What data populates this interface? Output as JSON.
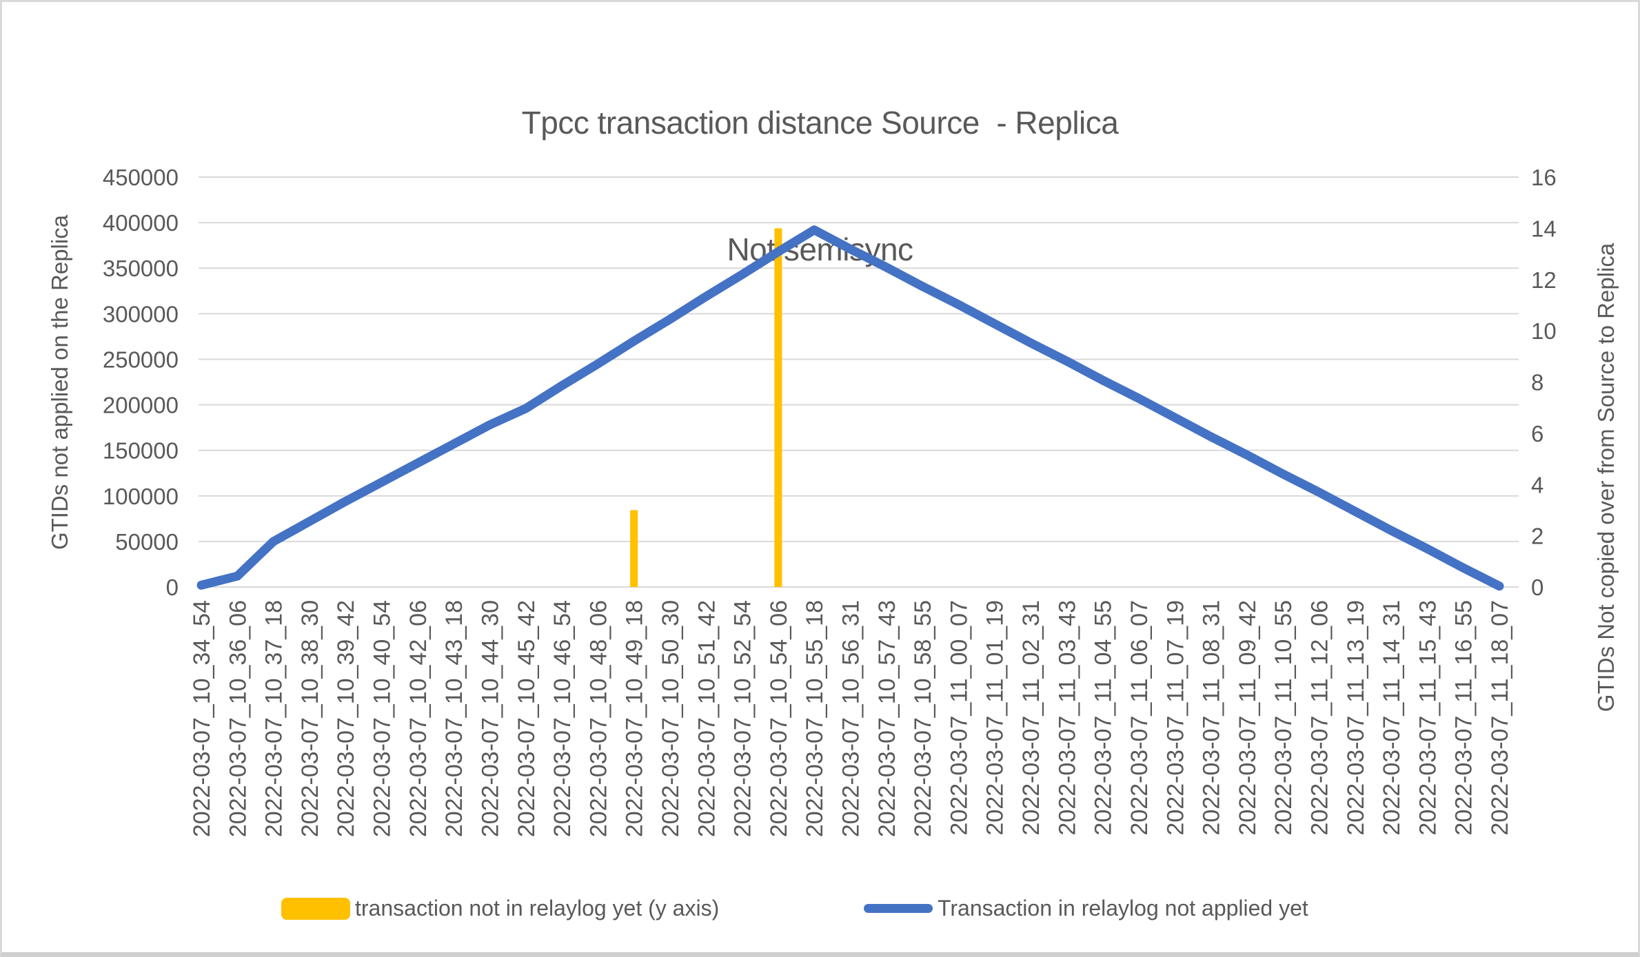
{
  "title": {
    "line1": "Tpcc transaction distance Source  - Replica",
    "line2": "Not semisync"
  },
  "legend": {
    "items": [
      {
        "label": "transaction not in relaylog yet (y axis)",
        "color": "#FFC000",
        "swatch": "bar"
      },
      {
        "label": "Transaction in relaylog not applied yet",
        "color": "#4472C4",
        "swatch": "line"
      }
    ]
  },
  "chart_data": {
    "type": "combo",
    "title": "Tpcc transaction distance Source  - Replica — Not semisync",
    "grid": true,
    "gridline_color": "#D9D9D9",
    "legend_position": "bottom",
    "text_color": "#595959",
    "categories": [
      "2022-03-07_10_34_54",
      "2022-03-07_10_36_06",
      "2022-03-07_10_37_18",
      "2022-03-07_10_38_30",
      "2022-03-07_10_39_42",
      "2022-03-07_10_40_54",
      "2022-03-07_10_42_06",
      "2022-03-07_10_43_18",
      "2022-03-07_10_44_30",
      "2022-03-07_10_45_42",
      "2022-03-07_10_46_54",
      "2022-03-07_10_48_06",
      "2022-03-07_10_49_18",
      "2022-03-07_10_50_30",
      "2022-03-07_10_51_42",
      "2022-03-07_10_52_54",
      "2022-03-07_10_54_06",
      "2022-03-07_10_55_18",
      "2022-03-07_10_56_31",
      "2022-03-07_10_57_43",
      "2022-03-07_10_58_55",
      "2022-03-07_11_00_07",
      "2022-03-07_11_01_19",
      "2022-03-07_11_02_31",
      "2022-03-07_11_03_43",
      "2022-03-07_11_04_55",
      "2022-03-07_11_06_07",
      "2022-03-07_11_07_19",
      "2022-03-07_11_08_31",
      "2022-03-07_11_09_42",
      "2022-03-07_11_10_55",
      "2022-03-07_11_12_06",
      "2022-03-07_11_13_19",
      "2022-03-07_11_14_31",
      "2022-03-07_11_15_43",
      "2022-03-07_11_16_55",
      "2022-03-07_11_18_07"
    ],
    "left_axis": {
      "label": "GTIDs not applied on the Replica",
      "min": 0,
      "max": 450000,
      "step": 50000,
      "ticks": [
        0,
        50000,
        100000,
        150000,
        200000,
        250000,
        300000,
        350000,
        400000,
        450000
      ]
    },
    "right_axis": {
      "label": "GTIDs Not copied over from Source to Replica",
      "min": 0,
      "max": 16,
      "step": 2,
      "ticks": [
        0,
        2,
        4,
        6,
        8,
        10,
        12,
        14,
        16
      ]
    },
    "series": [
      {
        "name": "transaction not in relaylog yet (y axis)",
        "type": "bar",
        "axis": "right",
        "color": "#FFC000",
        "values": [
          0,
          0,
          0,
          0,
          0,
          0,
          0,
          0,
          0,
          0,
          0,
          0,
          3,
          0,
          0,
          0,
          14,
          0,
          0,
          0,
          0,
          0,
          0,
          0,
          0,
          0,
          0,
          0,
          0,
          0,
          0,
          0,
          0,
          0,
          0,
          0,
          0
        ]
      },
      {
        "name": "Transaction in relaylog not applied yet",
        "type": "line",
        "axis": "left",
        "color": "#4472C4",
        "values": [
          2000,
          12000,
          50000,
          72000,
          94000,
          115000,
          136000,
          157000,
          178000,
          196000,
          221000,
          245000,
          270000,
          294000,
          319000,
          343000,
          368000,
          392000,
          371000,
          351000,
          330000,
          310000,
          289000,
          268000,
          248000,
          227000,
          207000,
          186000,
          165000,
          145000,
          124000,
          104000,
          83000,
          62000,
          42000,
          21000,
          1000
        ]
      }
    ]
  }
}
